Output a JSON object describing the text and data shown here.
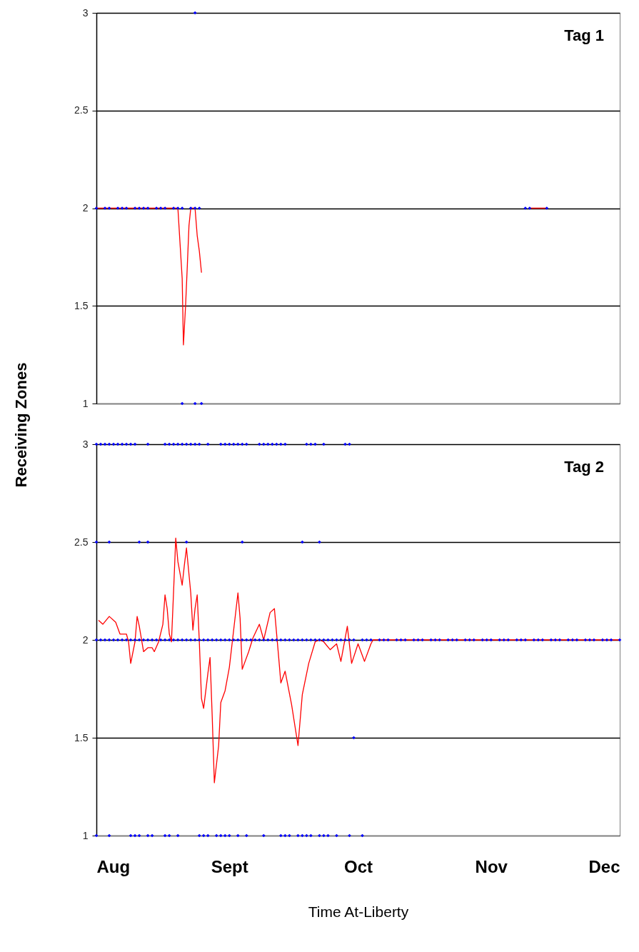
{
  "chart_data": [
    {
      "type": "scatter",
      "title": "Tag 1",
      "ylabel": "Receiving Zones",
      "xlim": [
        "--08-01",
        "--12-01"
      ],
      "ylim": [
        1,
        3
      ],
      "xticks": [
        {
          "value": "--08-01",
          "label": "Aug"
        },
        {
          "value": "--09-01",
          "label": "Sept"
        },
        {
          "value": "--10-01",
          "label": "Oct"
        },
        {
          "value": "--11-01",
          "label": "Nov"
        },
        {
          "value": "--12-01",
          "label": "Dec"
        }
      ],
      "yticks": [
        1,
        1.5,
        2,
        2.5,
        3
      ],
      "grid": "y",
      "marker": "diamond",
      "tick_labels": "y",
      "series": [
        {
          "color": "#0000ff",
          "x": [
            "--08-01",
            "--08-03",
            "--08-04",
            "--08-06",
            "--08-07",
            "--08-08",
            "--08-10",
            "--08-11",
            "--08-12",
            "--08-13",
            "--08-15",
            "--08-16",
            "--08-17",
            "--08-19",
            "--08-20",
            "--08-21",
            "--08-23",
            "--08-24",
            "--08-25",
            "--11-09",
            "--11-10",
            "--11-14"
          ],
          "values": [
            2,
            2,
            2,
            2,
            2,
            2,
            2,
            2,
            2,
            2,
            2,
            2,
            2,
            2,
            2,
            2,
            2,
            2,
            2,
            2,
            2,
            2
          ]
        },
        {
          "color": "#0000ff",
          "x": [
            "--08-24"
          ],
          "values": [
            3
          ]
        },
        {
          "color": "#0000ff",
          "x": [
            "--08-21",
            "--08-24",
            "--08-25T12:00"
          ],
          "values": [
            1,
            1,
            1
          ]
        },
        {
          "type": "line",
          "color": "#ff0000",
          "line_style": "solid",
          "marker": "none",
          "x": [
            "--08-01",
            "--08-20",
            "--08-20T12:00",
            "--08-21",
            "--08-21T07:00",
            "--08-21T19:00",
            "--08-22T05:00",
            "--08-22T14:00",
            "--08-23",
            "--08-24",
            "--08-24T12:00",
            "--08-25",
            "--08-25T12:00",
            "--09-30",
            "--11-10",
            "--11-14"
          ],
          "values": [
            2,
            2,
            1.82,
            1.64,
            1.3,
            1.5,
            1.71,
            1.91,
            2,
            2,
            1.86,
            1.78,
            1.67,
            null,
            2,
            2
          ]
        }
      ]
    },
    {
      "type": "scatter",
      "title": "Tag 2",
      "xlabel": "Time At-Liberty",
      "xlim": [
        "--08-01",
        "--12-01"
      ],
      "ylim": [
        1,
        3
      ],
      "xticks": [
        {
          "value": "--08-01",
          "label": "Aug"
        },
        {
          "value": "--09-01",
          "label": "Sept"
        },
        {
          "value": "--10-01",
          "label": "Oct"
        },
        {
          "value": "--11-01",
          "label": "Nov"
        },
        {
          "value": "--12-01",
          "label": "Dec"
        }
      ],
      "yticks": [
        1,
        1.5,
        2,
        2.5,
        3
      ],
      "grid": "y",
      "marker": "diamond",
      "series": [
        {
          "color": "#0000ff",
          "x": [
            "--08-01",
            "--08-02",
            "--08-03",
            "--08-04",
            "--08-05",
            "--08-06",
            "--08-07",
            "--08-08",
            "--08-09",
            "--08-10",
            "--08-13",
            "--08-17",
            "--08-18",
            "--08-19",
            "--08-20",
            "--08-21",
            "--08-22",
            "--08-23",
            "--08-24",
            "--08-25",
            "--08-27",
            "--08-30",
            "--08-31",
            "--09-01",
            "--09-02",
            "--09-03",
            "--09-04",
            "--09-05",
            "--09-08",
            "--09-09",
            "--09-10",
            "--09-11",
            "--09-12",
            "--09-13",
            "--09-14",
            "--09-19",
            "--09-20",
            "--09-21",
            "--09-23",
            "--09-28",
            "--09-29"
          ],
          "values": [
            3,
            3,
            3,
            3,
            3,
            3,
            3,
            3,
            3,
            3,
            3,
            3,
            3,
            3,
            3,
            3,
            3,
            3,
            3,
            3,
            3,
            3,
            3,
            3,
            3,
            3,
            3,
            3,
            3,
            3,
            3,
            3,
            3,
            3,
            3,
            3,
            3,
            3,
            3,
            3,
            3
          ]
        },
        {
          "type": "scatter",
          "color": "#0000ff",
          "x": [
            "--08-01",
            "--08-04",
            "--08-11",
            "--08-13",
            "--08-22",
            "--09-04",
            "--09-18",
            "--09-22"
          ],
          "values": [
            2.5,
            2.5,
            2.5,
            2.5,
            2.5,
            2.5,
            2.5,
            2.5
          ]
        },
        {
          "type": "scatter",
          "color": "#0000ff",
          "x": [
            "--08-01",
            "--08-02",
            "--08-03",
            "--08-04",
            "--08-05",
            "--08-06",
            "--08-07",
            "--08-08",
            "--08-09",
            "--08-10",
            "--08-11",
            "--08-12",
            "--08-13",
            "--08-14",
            "--08-15",
            "--08-16",
            "--08-17",
            "--08-18",
            "--08-19",
            "--08-20",
            "--08-21",
            "--08-22",
            "--08-23",
            "--08-24",
            "--08-25",
            "--08-26",
            "--08-27",
            "--08-28",
            "--08-29",
            "--08-30",
            "--08-31",
            "--09-01",
            "--09-02",
            "--09-03",
            "--09-04",
            "--09-05",
            "--09-06",
            "--09-07",
            "--09-08",
            "--09-09",
            "--09-10",
            "--09-11",
            "--09-12",
            "--09-13",
            "--09-14",
            "--09-15",
            "--09-16",
            "--09-17",
            "--09-18",
            "--09-19",
            "--09-20",
            "--09-21",
            "--09-22",
            "--09-23",
            "--09-24",
            "--09-25",
            "--09-26",
            "--09-27",
            "--09-28",
            "--09-29",
            "--09-30",
            "--10-02",
            "--10-03",
            "--10-04",
            "--10-06",
            "--10-07",
            "--10-08",
            "--10-10",
            "--10-11",
            "--10-12",
            "--10-14",
            "--10-15",
            "--10-16",
            "--10-18",
            "--10-19",
            "--10-20",
            "--10-22",
            "--10-23",
            "--10-24",
            "--10-26",
            "--10-27",
            "--10-28",
            "--10-30",
            "--10-31",
            "--11-01",
            "--11-03",
            "--11-04",
            "--11-05",
            "--11-07",
            "--11-08",
            "--11-09",
            "--11-11",
            "--11-12",
            "--11-13",
            "--11-15",
            "--11-16",
            "--11-17",
            "--11-19",
            "--11-20",
            "--11-21",
            "--11-23",
            "--11-24",
            "--11-25",
            "--11-27",
            "--11-28",
            "--11-29",
            "--12-01"
          ],
          "values": [
            2,
            2,
            2,
            2,
            2,
            2,
            2,
            2,
            2,
            2,
            2,
            2,
            2,
            2,
            2,
            2,
            2,
            2,
            2,
            2,
            2,
            2,
            2,
            2,
            2,
            2,
            2,
            2,
            2,
            2,
            2,
            2,
            2,
            2,
            2,
            2,
            2,
            2,
            2,
            2,
            2,
            2,
            2,
            2,
            2,
            2,
            2,
            2,
            2,
            2,
            2,
            2,
            2,
            2,
            2,
            2,
            2,
            2,
            2,
            2,
            2,
            2,
            2,
            2,
            2,
            2,
            2,
            2,
            2,
            2,
            2,
            2,
            2,
            2,
            2,
            2,
            2,
            2,
            2,
            2,
            2,
            2,
            2,
            2,
            2,
            2,
            2,
            2,
            2,
            2,
            2,
            2,
            2,
            2,
            2,
            2,
            2,
            2,
            2,
            2,
            2,
            2,
            2,
            2,
            2,
            2,
            2
          ]
        },
        {
          "type": "scatter",
          "color": "#0000ff",
          "x": [
            "--09-30"
          ],
          "values": [
            1.5
          ]
        },
        {
          "type": "scatter",
          "color": "#0000ff",
          "x": [
            "--08-01",
            "--08-04",
            "--08-09",
            "--08-10",
            "--08-11",
            "--08-13",
            "--08-14",
            "--08-17",
            "--08-18",
            "--08-20",
            "--08-25",
            "--08-26",
            "--08-27",
            "--08-29",
            "--08-30",
            "--08-31",
            "--09-01",
            "--09-03",
            "--09-05",
            "--09-09",
            "--09-13",
            "--09-14",
            "--09-15",
            "--09-17",
            "--09-18",
            "--09-19",
            "--09-20",
            "--09-22",
            "--09-23",
            "--09-24",
            "--09-26",
            "--09-29",
            "--10-02"
          ],
          "values": [
            1,
            1,
            1,
            1,
            1,
            1,
            1,
            1,
            1,
            1,
            1,
            1,
            1,
            1,
            1,
            1,
            1,
            1,
            1,
            1,
            1,
            1,
            1,
            1,
            1,
            1,
            1,
            1,
            1,
            1,
            1,
            1,
            1
          ]
        },
        {
          "type": "line",
          "color": "#ff0000",
          "line_style": "solid",
          "marker": "none",
          "x": [
            "--08-01T12:00",
            "--08-02T12:00",
            "--08-04",
            "--08-05T12:00",
            "--08-06T12:00",
            "--08-08",
            "--08-08T12:00",
            "--08-09",
            "--08-10",
            "--08-10T12:00",
            "--08-11",
            "--08-12",
            "--08-13",
            "--08-14",
            "--08-14T12:00",
            "--08-15T12:00",
            "--08-16T12:00",
            "--08-17",
            "--08-17T12:00",
            "--08-18",
            "--08-18T12:00",
            "--08-19",
            "--08-19T12:00",
            "--08-20",
            "--08-21",
            "--08-21T12:00",
            "--08-22",
            "--08-23",
            "--08-23T12:00",
            "--08-24",
            "--08-24T12:00",
            "--08-25",
            "--08-25T12:00",
            "--08-26",
            "--08-27",
            "--08-27T12:00",
            "--08-28",
            "--08-28T12:00",
            "--08-29T12:00",
            "--08-30",
            "--08-31",
            "--09-01",
            "--09-02",
            "--09-03",
            "--09-03T12:00",
            "--09-04",
            "--09-05T12:00",
            "--09-06T12:00",
            "--09-08",
            "--09-09",
            "--09-10T12:00",
            "--09-11T12:00",
            "--09-12T12:00",
            "--09-13",
            "--09-14",
            "--09-15T12:00",
            "--09-17",
            "--09-18",
            "--09-19T12:00",
            "--09-21",
            "--09-22",
            "--09-23",
            "--09-24T12:00",
            "--09-26",
            "--09-27",
            "--09-28T12:00",
            "--09-29T12:00",
            "--10-01",
            "--10-02T12:00",
            "--10-04",
            "--10-04T12:00",
            "--12-01"
          ],
          "values": [
            2.1,
            2.08,
            2.12,
            2.09,
            2.03,
            2.03,
            1.99,
            1.88,
            1.99,
            2.12,
            2.07,
            1.94,
            1.96,
            1.96,
            1.94,
            1.99,
            2.08,
            2.23,
            2.16,
            2.03,
            1.99,
            2.25,
            2.52,
            2.4,
            2.28,
            2.38,
            2.47,
            2.24,
            2.05,
            2.16,
            2.23,
            1.99,
            1.7,
            1.65,
            1.83,
            1.91,
            1.61,
            1.27,
            1.46,
            1.68,
            1.74,
            1.86,
            2.05,
            2.24,
            2.11,
            1.85,
            1.94,
            2.01,
            2.08,
            2,
            2.14,
            2.16,
            1.91,
            1.78,
            1.84,
            1.67,
            1.46,
            1.72,
            1.88,
            1.99,
            2,
            1.99,
            1.95,
            1.98,
            1.89,
            2.07,
            1.88,
            1.98,
            1.89,
            1.98,
            2,
            2
          ]
        }
      ]
    }
  ]
}
